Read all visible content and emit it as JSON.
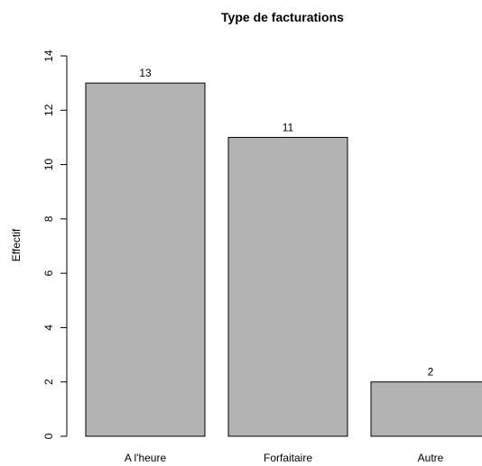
{
  "chart_data": {
    "type": "bar",
    "title": "Type de facturations",
    "xlabel": "",
    "ylabel": "Effectif",
    "categories": [
      "A l'heure",
      "Forfaitaire",
      "Autre"
    ],
    "values": [
      13,
      11,
      2
    ],
    "value_labels": [
      "13",
      "11",
      "2"
    ],
    "ylim": [
      0,
      14
    ],
    "yticks": [
      0,
      2,
      4,
      6,
      8,
      10,
      12,
      14
    ],
    "ytick_labels": [
      "0",
      "2",
      "4",
      "6",
      "8",
      "10",
      "12",
      "14"
    ],
    "grid": false,
    "legend": "none",
    "colors": {
      "bar_fill": "#b3b3b3",
      "bar_stroke": "#000000",
      "axis": "#000000",
      "background": "#ffffff"
    }
  }
}
